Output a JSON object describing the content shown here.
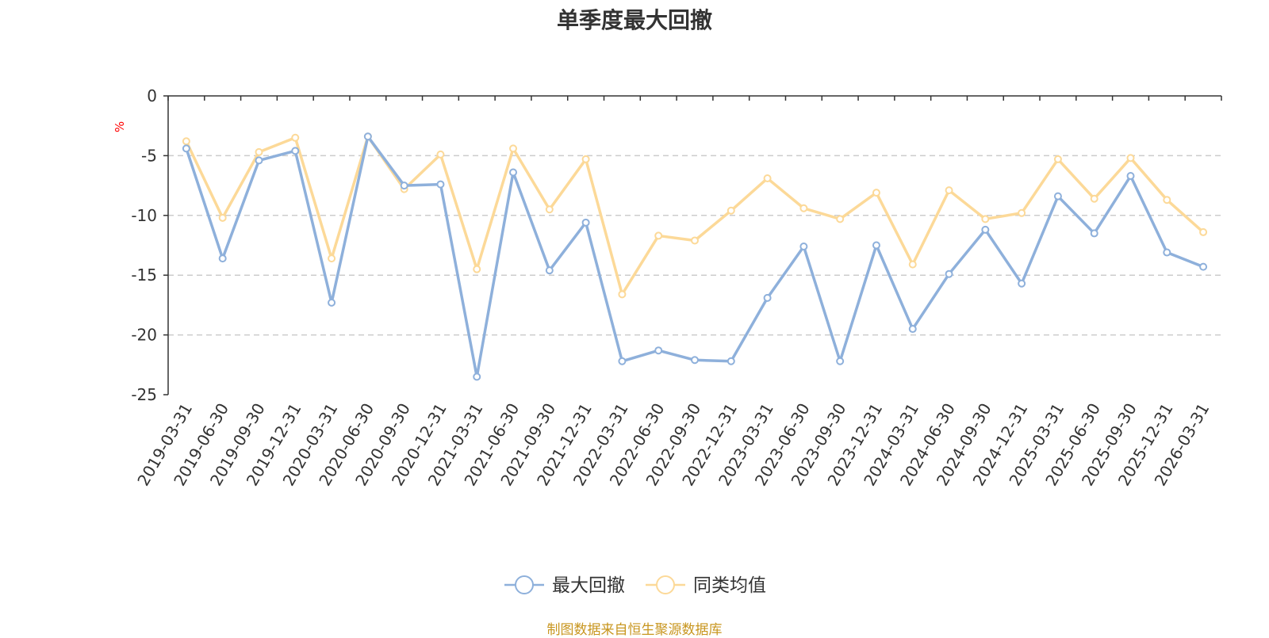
{
  "chart_data": {
    "type": "line",
    "title": "单季度最大回撤",
    "ylabel": "%",
    "ylim": [
      -25,
      0
    ],
    "yticks": [
      0,
      -5,
      -10,
      -15,
      -20,
      -25
    ],
    "grid": "horizontal-dashed",
    "legend_position": "bottom-center",
    "categories": [
      "2019-03-31",
      "2019-06-30",
      "2019-09-30",
      "2019-12-31",
      "2020-03-31",
      "2020-06-30",
      "2020-09-30",
      "2020-12-31",
      "2021-03-31",
      "2021-06-30",
      "2021-09-30",
      "2021-12-31",
      "2022-03-31",
      "2022-06-30",
      "2022-09-30",
      "2022-12-31",
      "2023-03-31",
      "2023-06-30",
      "2023-09-30",
      "2023-12-31",
      "2024-03-31",
      "2024-06-30",
      "2024-09-30",
      "2024-12-31",
      "2025-03-31",
      "2025-06-30",
      "2025-09-30",
      "2025-12-31",
      "2026-03-31"
    ],
    "series": [
      {
        "name": "最大回撤",
        "color": "#8eb0db",
        "values": [
          -4.4,
          -13.6,
          -5.4,
          -4.6,
          -17.3,
          -3.4,
          -7.5,
          -7.4,
          -23.5,
          -6.4,
          -14.6,
          -10.6,
          -22.2,
          -21.3,
          -22.1,
          -22.2,
          -16.9,
          -12.6,
          -22.2,
          -12.5,
          -19.5,
          -14.9,
          -11.2,
          -15.7,
          -8.4,
          -11.5,
          -6.7,
          -13.1,
          -14.3
        ]
      },
      {
        "name": "同类均值",
        "color": "#fcd998",
        "values": [
          -3.8,
          -10.2,
          -4.7,
          -3.5,
          -13.6,
          -3.4,
          -7.8,
          -4.9,
          -14.5,
          -4.4,
          -9.5,
          -5.3,
          -16.6,
          -11.7,
          -12.1,
          -9.6,
          -6.9,
          -9.4,
          -10.3,
          -8.1,
          -14.1,
          -7.9,
          -10.3,
          -9.8,
          -5.3,
          -8.6,
          -5.2,
          -8.7,
          -11.4
        ]
      }
    ],
    "source": "制图数据来自恒生聚源数据库",
    "unit_color": "#ff0000",
    "source_color": "#c8961f"
  }
}
